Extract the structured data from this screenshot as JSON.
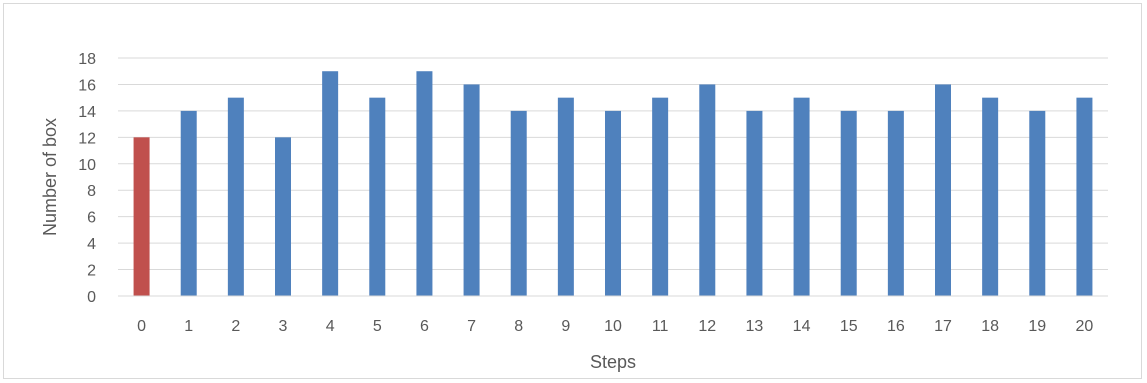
{
  "chart_data": {
    "type": "bar",
    "title": "",
    "xlabel": "Steps",
    "ylabel": "Number of box",
    "categories": [
      "0",
      "1",
      "2",
      "3",
      "4",
      "5",
      "6",
      "7",
      "8",
      "9",
      "10",
      "11",
      "12",
      "13",
      "14",
      "15",
      "16",
      "17",
      "18",
      "19",
      "20"
    ],
    "values": [
      12,
      14,
      15,
      12,
      17,
      15,
      17,
      16,
      14,
      15,
      14,
      15,
      16,
      14,
      15,
      14,
      14,
      16,
      15,
      14,
      15
    ],
    "bar_colors": [
      "#c0504d",
      "#4f81bd",
      "#4f81bd",
      "#4f81bd",
      "#4f81bd",
      "#4f81bd",
      "#4f81bd",
      "#4f81bd",
      "#4f81bd",
      "#4f81bd",
      "#4f81bd",
      "#4f81bd",
      "#4f81bd",
      "#4f81bd",
      "#4f81bd",
      "#4f81bd",
      "#4f81bd",
      "#4f81bd",
      "#4f81bd",
      "#4f81bd",
      "#4f81bd"
    ],
    "ylim": [
      0,
      18
    ],
    "yticks": [
      0,
      2,
      4,
      6,
      8,
      10,
      12,
      14,
      16,
      18
    ],
    "grid": true,
    "legend": "none"
  }
}
